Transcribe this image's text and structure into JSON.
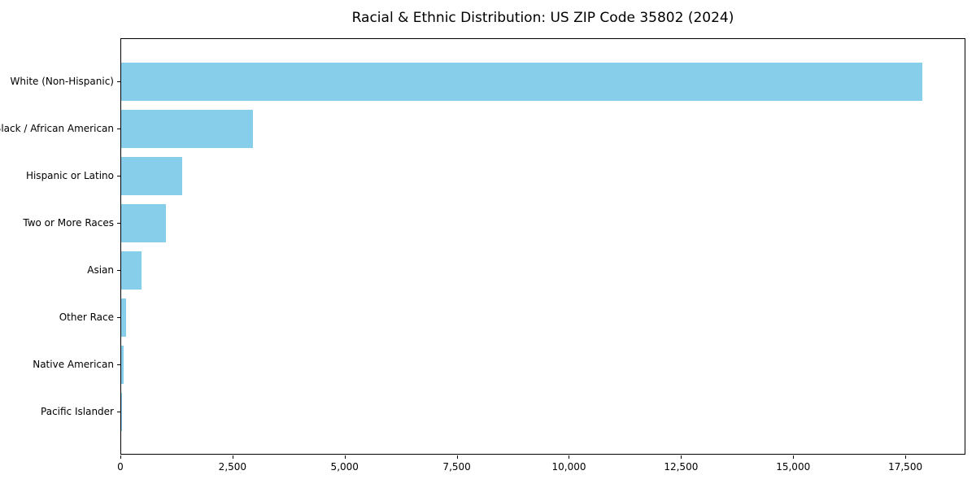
{
  "chart_data": {
    "type": "bar",
    "orientation": "horizontal",
    "title": "Racial & Ethnic Distribution: US ZIP Code 35802 (2024)",
    "categories": [
      "White (Non-Hispanic)",
      "Black / African American",
      "Hispanic or Latino",
      "Two or More Races",
      "Asian",
      "Other Race",
      "Native American",
      "Pacific Islander"
    ],
    "values": [
      17900,
      2950,
      1360,
      1000,
      450,
      110,
      60,
      15
    ],
    "xlabel": "",
    "ylabel": "",
    "xlim": [
      0,
      18840
    ],
    "xticks": [
      0,
      2500,
      5000,
      7500,
      10000,
      12500,
      15000,
      17500
    ],
    "xtick_labels": [
      "0",
      "2,500",
      "5,000",
      "7,500",
      "10,000",
      "12,500",
      "15,000",
      "17,500"
    ],
    "bar_color": "#87CEEB",
    "text_color": "#000000",
    "spine_color": "#000000",
    "grid": false,
    "legend": null
  }
}
